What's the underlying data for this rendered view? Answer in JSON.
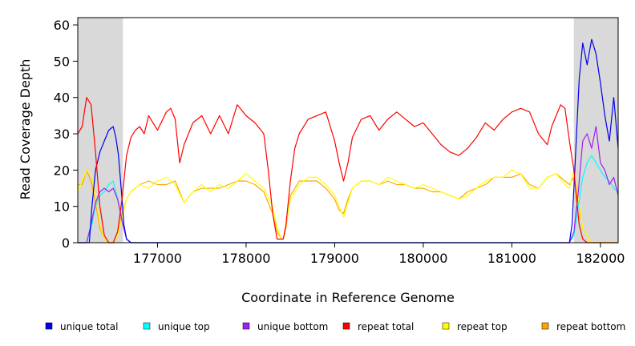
{
  "chart_data": {
    "type": "line",
    "xlabel": "Coordinate in Reference Genome",
    "ylabel": "Read Coverage Depth",
    "xlim": [
      176100,
      182200
    ],
    "ylim": [
      0,
      62
    ],
    "x_ticks": [
      177000,
      178000,
      179000,
      180000,
      181000,
      182000
    ],
    "x_tick_labels": [
      "177000",
      "178000",
      "179000",
      "180000",
      "181000",
      "182000"
    ],
    "y_ticks": [
      0,
      10,
      20,
      30,
      40,
      50,
      60
    ],
    "y_tick_labels": [
      "0",
      "10",
      "20",
      "30",
      "40",
      "50",
      "60"
    ],
    "shaded_regions": [
      {
        "x0": 176100,
        "x1": 176610,
        "color": "#d9d9d9"
      },
      {
        "x0": 181700,
        "x1": 182200,
        "color": "#d9d9d9"
      }
    ],
    "legend_position": "bottom",
    "series": [
      {
        "name": "unique total",
        "color": "#0000ee",
        "x": [
          176100,
          176200,
          176230,
          176260,
          176300,
          176350,
          176400,
          176450,
          176500,
          176530,
          176560,
          176600,
          176620,
          176650,
          176700,
          177000,
          178000,
          179000,
          180000,
          181000,
          181650,
          181680,
          181700,
          181730,
          181760,
          181800,
          181850,
          181900,
          181950,
          182000,
          182050,
          182100,
          182150,
          182200
        ],
        "y": [
          0,
          0,
          0,
          10,
          20,
          25,
          28,
          31,
          32,
          29,
          24,
          12,
          5,
          1,
          0,
          0,
          0,
          0,
          0,
          0,
          0,
          5,
          15,
          30,
          45,
          55,
          49,
          56,
          52,
          44,
          35,
          28,
          40,
          26
        ]
      },
      {
        "name": "unique top",
        "color": "#00ffff",
        "x": [
          176100,
          176200,
          176250,
          176300,
          176350,
          176400,
          176450,
          176500,
          176550,
          176600,
          176650,
          176700,
          181650,
          181700,
          181750,
          181800,
          181850,
          181900,
          181950,
          182000,
          182050,
          182100,
          182150,
          182200
        ],
        "y": [
          0,
          0,
          4,
          10,
          13,
          14,
          16,
          17,
          12,
          6,
          1,
          0,
          0,
          2,
          10,
          18,
          22,
          24,
          22,
          20,
          18,
          17,
          15,
          14
        ]
      },
      {
        "name": "unique bottom",
        "color": "#a020f0",
        "x": [
          176100,
          176200,
          176250,
          176300,
          176350,
          176400,
          176450,
          176500,
          176550,
          176600,
          176650,
          176700,
          181650,
          181700,
          181750,
          181800,
          181850,
          181900,
          181950,
          182000,
          182050,
          182100,
          182150,
          182200
        ],
        "y": [
          0,
          0,
          5,
          11,
          14,
          15,
          14,
          15,
          12,
          6,
          1,
          0,
          0,
          3,
          14,
          28,
          30,
          26,
          32,
          22,
          20,
          16,
          18,
          13
        ]
      },
      {
        "name": "repeat total",
        "color": "#ff0000",
        "x": [
          176100,
          176150,
          176200,
          176250,
          176300,
          176350,
          176400,
          176450,
          176500,
          176550,
          176600,
          176650,
          176700,
          176750,
          176800,
          176850,
          176900,
          176950,
          177000,
          177100,
          177150,
          177200,
          177250,
          177300,
          177400,
          177500,
          177600,
          177700,
          177800,
          177900,
          178000,
          178100,
          178200,
          178250,
          178300,
          178350,
          178400,
          178420,
          178450,
          178500,
          178550,
          178600,
          178700,
          178800,
          178900,
          179000,
          179050,
          179100,
          179150,
          179200,
          179300,
          179400,
          179500,
          179600,
          179700,
          179800,
          179900,
          180000,
          180100,
          180200,
          180300,
          180400,
          180500,
          180600,
          180700,
          180800,
          180900,
          181000,
          181100,
          181200,
          181300,
          181400,
          181450,
          181500,
          181550,
          181600,
          181650,
          181700,
          181730,
          181760,
          181800,
          181850,
          181900,
          181950,
          182000,
          182200
        ],
        "y": [
          30,
          32,
          40,
          38,
          25,
          10,
          2,
          0,
          0,
          3,
          12,
          24,
          29,
          31,
          32,
          30,
          35,
          33,
          31,
          36,
          37,
          34,
          22,
          27,
          33,
          35,
          30,
          35,
          30,
          38,
          35,
          33,
          30,
          20,
          8,
          1,
          1,
          1,
          5,
          17,
          26,
          30,
          34,
          35,
          36,
          28,
          22,
          17,
          22,
          29,
          34,
          35,
          31,
          34,
          36,
          34,
          32,
          33,
          30,
          27,
          25,
          24,
          26,
          29,
          33,
          31,
          34,
          36,
          37,
          36,
          30,
          27,
          32,
          35,
          38,
          37,
          28,
          20,
          12,
          5,
          1,
          0,
          0,
          0,
          0,
          0
        ]
      },
      {
        "name": "repeat top",
        "color": "#ffff00",
        "x": [
          176100,
          176150,
          176200,
          176250,
          176300,
          176350,
          176400,
          176450,
          176500,
          176550,
          176600,
          176650,
          176700,
          176800,
          176900,
          177000,
          177100,
          177200,
          177300,
          177400,
          177500,
          177600,
          177700,
          177800,
          177900,
          178000,
          178100,
          178200,
          178300,
          178350,
          178400,
          178420,
          178450,
          178500,
          178600,
          178700,
          178800,
          178900,
          179000,
          179050,
          179100,
          179150,
          179200,
          179300,
          179400,
          179500,
          179600,
          179700,
          179800,
          179900,
          180000,
          180100,
          180200,
          180300,
          180400,
          180500,
          180600,
          180700,
          180800,
          180900,
          181000,
          181100,
          181200,
          181300,
          181400,
          181500,
          181600,
          181650,
          181700,
          181750,
          181800,
          181900,
          182200
        ],
        "y": [
          14,
          17,
          20,
          19,
          13,
          5,
          1,
          0,
          0,
          2,
          7,
          12,
          14,
          16,
          15,
          17,
          18,
          16,
          11,
          14,
          16,
          14,
          16,
          15,
          17,
          19,
          17,
          15,
          10,
          4,
          1,
          1,
          5,
          12,
          16,
          18,
          18,
          16,
          13,
          10,
          7,
          11,
          15,
          17,
          17,
          16,
          18,
          17,
          16,
          15,
          16,
          15,
          14,
          13,
          12,
          13,
          15,
          17,
          18,
          18,
          20,
          19,
          15,
          15,
          18,
          19,
          16,
          15,
          20,
          12,
          4,
          0,
          0
        ]
      },
      {
        "name": "repeat bottom",
        "color": "#ffa500",
        "x": [
          176100,
          176150,
          176200,
          176250,
          176300,
          176350,
          176400,
          176450,
          176500,
          176550,
          176600,
          176650,
          176700,
          176800,
          176900,
          177000,
          177100,
          177200,
          177300,
          177400,
          177500,
          177600,
          177700,
          177800,
          177900,
          178000,
          178100,
          178200,
          178300,
          178350,
          178400,
          178420,
          178450,
          178500,
          178600,
          178700,
          178800,
          178900,
          179000,
          179050,
          179100,
          179150,
          179200,
          179300,
          179400,
          179500,
          179600,
          179700,
          179800,
          179900,
          180000,
          180100,
          180200,
          180300,
          180400,
          180500,
          180600,
          180700,
          180800,
          180900,
          181000,
          181100,
          181200,
          181300,
          181400,
          181500,
          181600,
          181650,
          181700,
          181750,
          181800,
          181900,
          182200
        ],
        "y": [
          16,
          16,
          20,
          17,
          11,
          4,
          1,
          0,
          0,
          2,
          8,
          12,
          14,
          16,
          17,
          16,
          16,
          17,
          11,
          14,
          15,
          15,
          15,
          16,
          17,
          17,
          16,
          14,
          8,
          3,
          1,
          1,
          4,
          13,
          17,
          17,
          17,
          15,
          12,
          9,
          8,
          12,
          15,
          17,
          17,
          16,
          17,
          16,
          16,
          15,
          15,
          14,
          14,
          13,
          12,
          14,
          15,
          16,
          18,
          18,
          18,
          19,
          16,
          15,
          18,
          19,
          17,
          16,
          18,
          11,
          4,
          0,
          0
        ]
      }
    ]
  }
}
